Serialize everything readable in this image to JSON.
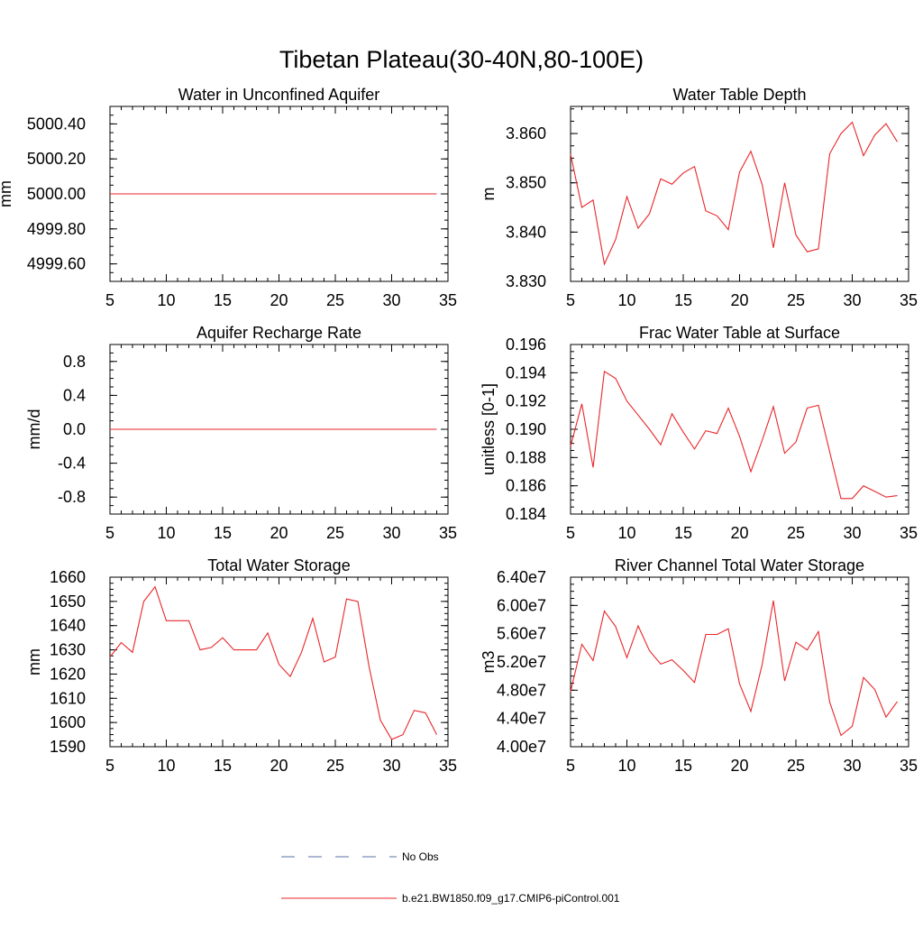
{
  "title": "Tibetan Plateau(30-40N,80-100E)",
  "legend": {
    "items": [
      {
        "label": "No Obs",
        "color": "#5b6fa8",
        "dash": true
      },
      {
        "label": "b.e21.BW1850.f09_g17.CMIP6-piControl.001",
        "color": "#e8262a",
        "dash": false
      }
    ]
  },
  "chart_data": [
    {
      "type": "line",
      "title": "Water in Unconfined Aquifer",
      "ylabel": "mm",
      "xlim": [
        5,
        35
      ],
      "ylim": [
        4999.5,
        5000.5
      ],
      "xticks": [
        "5",
        "10",
        "15",
        "20",
        "25",
        "30",
        "35"
      ],
      "yticks": [
        {
          "v": 4999.6,
          "label": "4999.60"
        },
        {
          "v": 4999.8,
          "label": "4999.80"
        },
        {
          "v": 5000.0,
          "label": "5000.00"
        },
        {
          "v": 5000.2,
          "label": "5000.20"
        },
        {
          "v": 5000.4,
          "label": "5000.40"
        }
      ],
      "series": [
        {
          "color": "#e8262a",
          "x": [
            5,
            6,
            7,
            8,
            9,
            10,
            11,
            12,
            13,
            14,
            15,
            16,
            17,
            18,
            19,
            20,
            21,
            22,
            23,
            24,
            25,
            26,
            27,
            28,
            29,
            30,
            31,
            32,
            33,
            34
          ],
          "values": [
            5000,
            5000,
            5000,
            5000,
            5000,
            5000,
            5000,
            5000,
            5000,
            5000,
            5000,
            5000,
            5000,
            5000,
            5000,
            5000,
            5000,
            5000,
            5000,
            5000,
            5000,
            5000,
            5000,
            5000,
            5000,
            5000,
            5000,
            5000,
            5000,
            5000
          ]
        }
      ]
    },
    {
      "type": "line",
      "title": "Water Table Depth",
      "ylabel": "m",
      "xlim": [
        5,
        35
      ],
      "ylim": [
        3.83,
        3.8655
      ],
      "xticks": [
        "5",
        "10",
        "15",
        "20",
        "25",
        "30",
        "35"
      ],
      "yticks": [
        {
          "v": 3.83,
          "label": "3.830"
        },
        {
          "v": 3.84,
          "label": "3.840"
        },
        {
          "v": 3.85,
          "label": "3.850"
        },
        {
          "v": 3.86,
          "label": "3.860"
        }
      ],
      "series": [
        {
          "color": "#e8262a",
          "x": [
            5,
            6,
            7,
            8,
            9,
            10,
            11,
            12,
            13,
            14,
            15,
            16,
            17,
            18,
            19,
            20,
            21,
            22,
            23,
            24,
            25,
            26,
            27,
            28,
            29,
            30,
            31,
            32,
            33,
            34
          ],
          "values": [
            3.8558,
            3.845,
            3.8465,
            3.8335,
            3.8385,
            3.8472,
            3.8408,
            3.8437,
            3.8508,
            3.8497,
            3.852,
            3.8533,
            3.8443,
            3.8433,
            3.8405,
            3.8522,
            3.8564,
            3.8497,
            3.8368,
            3.85,
            3.8394,
            3.836,
            3.8366,
            3.8559,
            3.86,
            3.8623,
            3.8555,
            3.8597,
            3.862,
            3.8583
          ]
        }
      ]
    },
    {
      "type": "line",
      "title": "Aquifer Recharge Rate",
      "ylabel": "mm/d",
      "xlim": [
        5,
        35
      ],
      "ylim": [
        -1.0,
        1.0
      ],
      "xticks": [
        "5",
        "10",
        "15",
        "20",
        "25",
        "30",
        "35"
      ],
      "yticks": [
        {
          "v": -0.8,
          "label": "-0.8"
        },
        {
          "v": -0.4,
          "label": "-0.4"
        },
        {
          "v": 0.0,
          "label": "0.0"
        },
        {
          "v": 0.4,
          "label": "0.4"
        },
        {
          "v": 0.8,
          "label": "0.8"
        }
      ],
      "series": [
        {
          "color": "#e8262a",
          "x": [
            5,
            6,
            7,
            8,
            9,
            10,
            11,
            12,
            13,
            14,
            15,
            16,
            17,
            18,
            19,
            20,
            21,
            22,
            23,
            24,
            25,
            26,
            27,
            28,
            29,
            30,
            31,
            32,
            33,
            34
          ],
          "values": [
            0,
            0,
            0,
            0,
            0,
            0,
            0,
            0,
            0,
            0,
            0,
            0,
            0,
            0,
            0,
            0,
            0,
            0,
            0,
            0,
            0,
            0,
            0,
            0,
            0,
            0,
            0,
            0,
            0,
            0
          ]
        }
      ]
    },
    {
      "type": "line",
      "title": "Frac Water Table at Surface",
      "ylabel": "unitless [0-1]",
      "xlim": [
        5,
        35
      ],
      "ylim": [
        0.184,
        0.196
      ],
      "xticks": [
        "5",
        "10",
        "15",
        "20",
        "25",
        "30",
        "35"
      ],
      "yticks": [
        {
          "v": 0.184,
          "label": "0.184"
        },
        {
          "v": 0.186,
          "label": "0.186"
        },
        {
          "v": 0.188,
          "label": "0.188"
        },
        {
          "v": 0.19,
          "label": "0.190"
        },
        {
          "v": 0.192,
          "label": "0.192"
        },
        {
          "v": 0.194,
          "label": "0.194"
        },
        {
          "v": 0.196,
          "label": "0.196"
        }
      ],
      "series": [
        {
          "color": "#e8262a",
          "x": [
            5,
            6,
            7,
            8,
            9,
            10,
            11,
            12,
            13,
            14,
            15,
            16,
            17,
            18,
            19,
            20,
            21,
            22,
            23,
            24,
            25,
            26,
            27,
            28,
            29,
            30,
            31,
            32,
            33,
            34
          ],
          "values": [
            0.1888,
            0.1918,
            0.1873,
            0.1941,
            0.1936,
            0.192,
            0.191,
            0.19,
            0.1889,
            0.1911,
            0.1898,
            0.1886,
            0.1899,
            0.1897,
            0.1915,
            0.1895,
            0.187,
            0.1892,
            0.1916,
            0.1883,
            0.1891,
            0.1915,
            0.1917,
            0.1884,
            0.1851,
            0.1851,
            0.186,
            0.1856,
            0.1852,
            0.1853
          ]
        }
      ]
    },
    {
      "type": "line",
      "title": "Total Water Storage",
      "ylabel": "mm",
      "xlim": [
        5,
        35
      ],
      "ylim": [
        1590,
        1660
      ],
      "xticks": [
        "5",
        "10",
        "15",
        "20",
        "25",
        "30",
        "35"
      ],
      "yticks": [
        {
          "v": 1590,
          "label": "1590"
        },
        {
          "v": 1600,
          "label": "1600"
        },
        {
          "v": 1610,
          "label": "1610"
        },
        {
          "v": 1620,
          "label": "1620"
        },
        {
          "v": 1630,
          "label": "1630"
        },
        {
          "v": 1640,
          "label": "1640"
        },
        {
          "v": 1650,
          "label": "1650"
        },
        {
          "v": 1660,
          "label": "1660"
        }
      ],
      "series": [
        {
          "color": "#e8262a",
          "x": [
            5,
            6,
            7,
            8,
            9,
            10,
            11,
            12,
            13,
            14,
            15,
            16,
            17,
            18,
            19,
            20,
            21,
            22,
            23,
            24,
            25,
            26,
            27,
            28,
            29,
            30,
            31,
            32,
            33,
            34
          ],
          "values": [
            1627,
            1633,
            1629,
            1650,
            1656,
            1642,
            1642,
            1642,
            1630,
            1631,
            1635,
            1630,
            1630,
            1630,
            1637,
            1624,
            1619,
            1629,
            1643,
            1625,
            1627,
            1651,
            1650,
            1623,
            1601,
            1593,
            1595,
            1605,
            1604,
            1595
          ]
        }
      ]
    },
    {
      "type": "line",
      "title": "River Channel Total Water Storage",
      "ylabel": "m3",
      "xlim": [
        5,
        35
      ],
      "ylim": [
        40000000,
        64000000
      ],
      "xticks": [
        "5",
        "10",
        "15",
        "20",
        "25",
        "30",
        "35"
      ],
      "yticks": [
        {
          "v": 40000000,
          "label": "4.00e7"
        },
        {
          "v": 44000000,
          "label": "4.40e7"
        },
        {
          "v": 48000000,
          "label": "4.80e7"
        },
        {
          "v": 52000000,
          "label": "5.20e7"
        },
        {
          "v": 56000000,
          "label": "5.60e7"
        },
        {
          "v": 60000000,
          "label": "6.00e7"
        },
        {
          "v": 64000000,
          "label": "6.40e7"
        }
      ],
      "series": [
        {
          "color": "#e8262a",
          "x": [
            5,
            6,
            7,
            8,
            9,
            10,
            11,
            12,
            13,
            14,
            15,
            16,
            17,
            18,
            19,
            20,
            21,
            22,
            23,
            24,
            25,
            26,
            27,
            28,
            29,
            30,
            31,
            32,
            33,
            34
          ],
          "values": [
            47800000,
            54500000,
            52200000,
            59200000,
            57000000,
            52600000,
            57100000,
            53600000,
            51700000,
            52300000,
            50800000,
            49100000,
            55900000,
            55900000,
            56700000,
            48900000,
            45000000,
            51600000,
            60700000,
            49300000,
            54800000,
            53700000,
            56300000,
            46300000,
            41600000,
            42900000,
            49800000,
            48100000,
            44200000,
            46400000
          ]
        }
      ]
    }
  ]
}
